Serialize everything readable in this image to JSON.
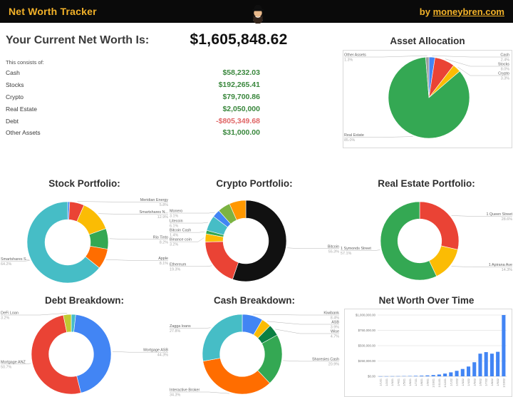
{
  "header": {
    "title": "Net Worth Tracker",
    "byline_prefix": "by ",
    "byline_link": "moneybren.com",
    "avatar_icon": "bearded-man-with-black-hat",
    "bg_color": "#0a0a0a",
    "accent_color": "#f3b229"
  },
  "summary": {
    "heading": "Your Current Net Worth Is:",
    "total": "$1,605,848.62",
    "subheading": "This consists of:",
    "positive_color": "#3a873d",
    "negative_color": "#e06666",
    "rows": [
      {
        "label": "Cash",
        "value": "$58,232.03",
        "color": "#3a873d"
      },
      {
        "label": "Stocks",
        "value": "$192,265.41",
        "color": "#3a873d"
      },
      {
        "label": "Crypto",
        "value": "$79,700.86",
        "color": "#3a873d"
      },
      {
        "label": "Real Estate",
        "value": "$2,050,000",
        "color": "#3a873d"
      },
      {
        "label": "Debt",
        "value": "-$805,349.68",
        "color": "#e06666"
      },
      {
        "label": "Other Assets",
        "value": "$31,000.00",
        "color": "#3a873d"
      }
    ]
  },
  "chart_data": [
    {
      "id": "asset_allocation",
      "type": "pie",
      "donut": false,
      "title": "Asset Allocation",
      "slices": [
        {
          "label": "Cash",
          "pct": 2.4,
          "color": "#4285f4"
        },
        {
          "label": "Stocks",
          "pct": 8.0,
          "color": "#ea4335"
        },
        {
          "label": "Crypto",
          "pct": 3.3,
          "color": "#fbbc04"
        },
        {
          "label": "Real Estate",
          "pct": 85.0,
          "color": "#34a853"
        },
        {
          "label": "Other Assets",
          "pct": 1.3,
          "color": "#9e9e9e"
        }
      ]
    },
    {
      "id": "stock_portfolio",
      "type": "pie",
      "donut": true,
      "title": "Stock Portfolio:",
      "slices": [
        {
          "label": "",
          "pct": 0.8,
          "color": "#4285f4"
        },
        {
          "label": "Meridian Energy",
          "pct": 5.8,
          "color": "#ea4335"
        },
        {
          "label": "Smartshares N...",
          "pct": 12.9,
          "color": "#fbbc04"
        },
        {
          "label": "Rio Tinto",
          "pct": 8.2,
          "color": "#34a853"
        },
        {
          "label": "Apple",
          "pct": 8.1,
          "color": "#ff6d00"
        },
        {
          "label": "Smartshares S...",
          "pct": 64.2,
          "color": "#46bdc6"
        }
      ]
    },
    {
      "id": "crypto_portfolio",
      "type": "pie",
      "donut": true,
      "title": "Crypto Portfolio:",
      "slices": [
        {
          "label": "Bitcoin",
          "pct": 55.3,
          "color": "#111111"
        },
        {
          "label": "Ethereum",
          "pct": 19.3,
          "color": "#ea4335"
        },
        {
          "label": "Binance coin",
          "pct": 3.2,
          "color": "#fbbc04"
        },
        {
          "label": "Bitcoin Cash",
          "pct": 1.4,
          "color": "#34a853"
        },
        {
          "label": "Litecoin",
          "pct": 6.1,
          "color": "#46bdc6"
        },
        {
          "label": "Monero",
          "pct": 3.1,
          "color": "#4285f4"
        },
        {
          "label": "",
          "pct": 5.0,
          "color": "#7cb342"
        },
        {
          "label": "",
          "pct": 6.6,
          "color": "#ff9800"
        }
      ]
    },
    {
      "id": "real_estate_portfolio",
      "type": "pie",
      "donut": true,
      "title": "Real Estate Portfolio:",
      "slices": [
        {
          "label": "1 Queen Street",
          "pct": 28.6,
          "color": "#ea4335"
        },
        {
          "label": "1 Apirana Ave",
          "pct": 14.3,
          "color": "#fbbc04"
        },
        {
          "label": "1 Symonds Street",
          "pct": 57.1,
          "color": "#34a853"
        }
      ]
    },
    {
      "id": "debt_breakdown",
      "type": "pie",
      "donut": true,
      "title": "Debt Breakdown:",
      "slices": [
        {
          "label": "",
          "pct": 1.8,
          "color": "#46bdc6"
        },
        {
          "label": "Mortgage ASB",
          "pct": 44.3,
          "color": "#4285f4"
        },
        {
          "label": "Mortgage ANZ",
          "pct": 50.7,
          "color": "#ea4335"
        },
        {
          "label": "DeFi Loan",
          "pct": 3.2,
          "color": "#c0ca33"
        }
      ]
    },
    {
      "id": "cash_breakdown",
      "type": "pie",
      "donut": true,
      "title": "Cash Breakdown:",
      "slices": [
        {
          "label": "Kiwibank",
          "pct": 8.4,
          "color": "#4285f4"
        },
        {
          "label": "ASB",
          "pct": 3.9,
          "color": "#fbbc04"
        },
        {
          "label": "Wise",
          "pct": 4.7,
          "color": "#0b8043"
        },
        {
          "label": "Sharesies Cash",
          "pct": 20.9,
          "color": "#34a853"
        },
        {
          "label": "Interactive Broker",
          "pct": 34.3,
          "color": "#ff6d00"
        },
        {
          "label": "Zagga loans",
          "pct": 27.8,
          "color": "#46bdc6"
        }
      ]
    },
    {
      "id": "net_worth_over_time",
      "type": "bar",
      "title": "Net Worth Over Time",
      "bar_color": "#4285f4",
      "grid": true,
      "ylim": [
        0,
        1000000
      ],
      "yticks": [
        "$0.00",
        "$250,000.00",
        "$500,000.00",
        "$750,000.00",
        "$1,000,000.00"
      ],
      "x": [
        "1/1/21",
        "1/2/21",
        "1/3/21",
        "1/4/21",
        "1/5/21",
        "1/6/21",
        "1/7/21",
        "1/8/21",
        "1/9/21",
        "1/10/21",
        "1/11/21",
        "1/12/21",
        "1/1/22",
        "1/2/22",
        "1/3/22",
        "1/4/22",
        "1/5/22",
        "1/6/22",
        "1/7/22",
        "1/8/22",
        "1/9/22",
        "1/10/22"
      ],
      "values": [
        1000,
        1500,
        2200,
        3000,
        4200,
        5800,
        8000,
        11000,
        15000,
        21000,
        30000,
        45000,
        65000,
        90000,
        120000,
        160000,
        230000,
        370000,
        395000,
        370000,
        400000,
        1000000
      ]
    }
  ]
}
